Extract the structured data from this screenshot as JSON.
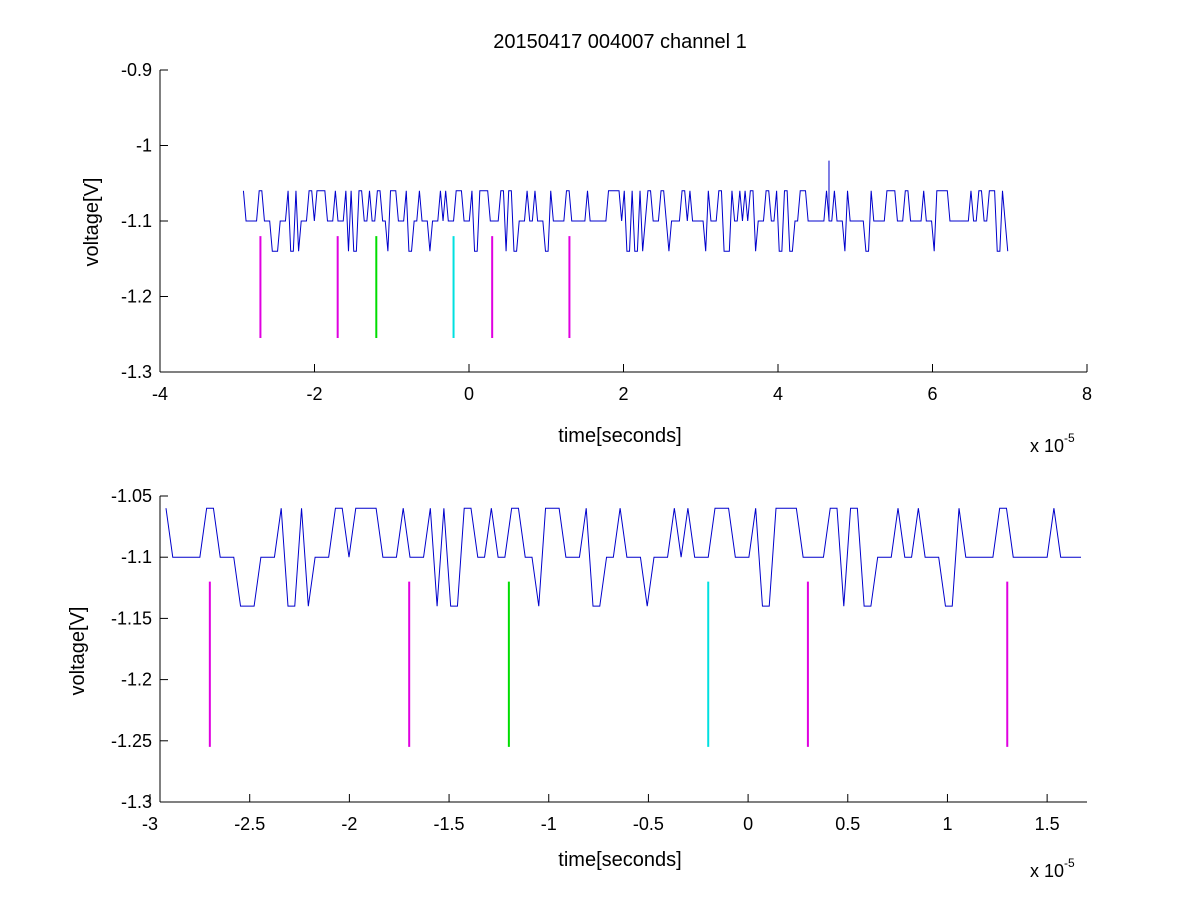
{
  "chart_data": [
    {
      "type": "line",
      "title": "20150417 004007 channel 1",
      "xlabel": "time[seconds]",
      "ylabel": "voltage[V]",
      "x_exponent_label": {
        "base": "x 10",
        "exp": "-5"
      },
      "xlim": [
        -4,
        8
      ],
      "ylim": [
        -1.3,
        -0.9
      ],
      "x_ticks": [
        -4,
        -2,
        0,
        2,
        4,
        6,
        8
      ],
      "x_tick_labels": [
        "-4",
        "-2",
        "0",
        "2",
        "4",
        "6",
        "8"
      ],
      "y_ticks": [
        -1.3,
        -1.2,
        -1.1,
        -1.0,
        -0.9
      ],
      "y_tick_labels": [
        "-1.3",
        "-1.2",
        "-1.1",
        "-1",
        "-0.9"
      ],
      "grid": false,
      "series": [
        {
          "color": "#0000cc",
          "x_range": [
            -2.92,
            7.0
          ],
          "baseline": -1.1,
          "high": -1.06,
          "low": -1.14,
          "spike": {
            "x": 4.66,
            "y": -1.02
          },
          "seed": 7
        }
      ],
      "markers": [
        {
          "x": -2.7,
          "y_top": -1.12,
          "y_bottom": -1.255,
          "color": "#e000e0"
        },
        {
          "x": -1.7,
          "y_top": -1.12,
          "y_bottom": -1.255,
          "color": "#e000e0"
        },
        {
          "x": -1.2,
          "y_top": -1.12,
          "y_bottom": -1.255,
          "color": "#00dd00"
        },
        {
          "x": -0.2,
          "y_top": -1.12,
          "y_bottom": -1.255,
          "color": "#00e0e0"
        },
        {
          "x": 0.3,
          "y_top": -1.12,
          "y_bottom": -1.255,
          "color": "#e000e0"
        },
        {
          "x": 1.3,
          "y_top": -1.12,
          "y_bottom": -1.255,
          "color": "#e000e0"
        }
      ]
    },
    {
      "type": "line",
      "title": "",
      "xlabel": "time[seconds]",
      "ylabel": "voltage[V]",
      "x_exponent_label": {
        "base": "x 10",
        "exp": "-5"
      },
      "xlim": [
        -2.95,
        1.7
      ],
      "ylim": [
        -1.3,
        -1.05
      ],
      "x_ticks": [
        -3,
        -2.5,
        -2,
        -1.5,
        -1,
        -0.5,
        0,
        0.5,
        1,
        1.5
      ],
      "x_tick_labels": [
        "-3",
        "-2.5",
        "-2",
        "-1.5",
        "-1",
        "-0.5",
        "0",
        "0.5",
        "1",
        "1.5"
      ],
      "y_ticks": [
        -1.3,
        -1.25,
        -1.2,
        -1.15,
        -1.1,
        -1.05
      ],
      "y_tick_labels": [
        "-1.3",
        "-1.25",
        "-1.2",
        "-1.15",
        "-1.1",
        "-1.05"
      ],
      "grid": false,
      "series": [
        {
          "color": "#0000cc",
          "x_range": [
            -2.92,
            1.7
          ],
          "baseline": -1.1,
          "high": -1.06,
          "low": -1.14,
          "spike": null,
          "seed": 7
        }
      ],
      "markers": [
        {
          "x": -2.7,
          "y_top": -1.12,
          "y_bottom": -1.255,
          "color": "#e000e0"
        },
        {
          "x": -1.7,
          "y_top": -1.12,
          "y_bottom": -1.255,
          "color": "#e000e0"
        },
        {
          "x": -1.2,
          "y_top": -1.12,
          "y_bottom": -1.255,
          "color": "#00dd00"
        },
        {
          "x": -0.2,
          "y_top": -1.12,
          "y_bottom": -1.255,
          "color": "#00e0e0"
        },
        {
          "x": 0.3,
          "y_top": -1.12,
          "y_bottom": -1.255,
          "color": "#e000e0"
        },
        {
          "x": 1.3,
          "y_top": -1.12,
          "y_bottom": -1.255,
          "color": "#e000e0"
        }
      ]
    }
  ]
}
